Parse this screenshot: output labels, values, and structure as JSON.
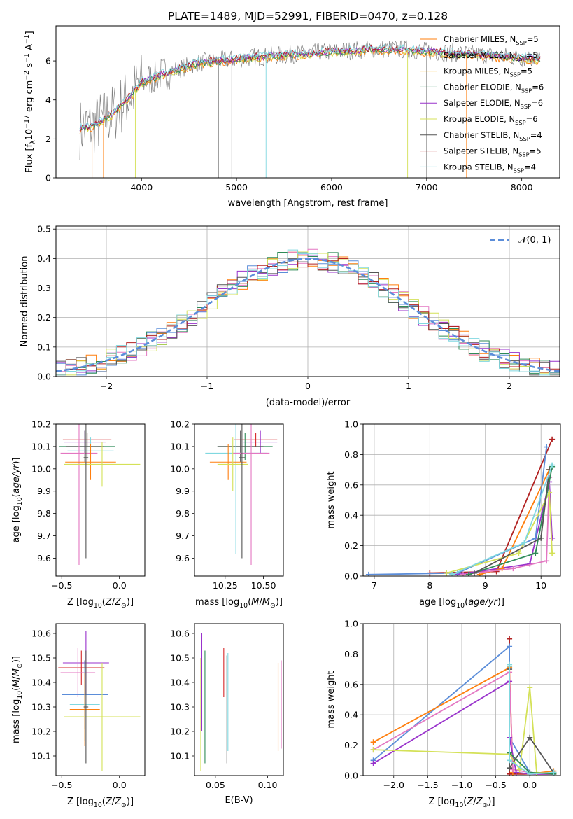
{
  "figure_title": "PLATE=1489, MJD=52991, FIBERID=0470, z=0.128",
  "model_colors": [
    "#ff7f0e",
    "#f0a030",
    "#ffb000",
    "#2e8b57",
    "#9932cc",
    "#d4e157",
    "#555555",
    "#b22222",
    "#80d8e0"
  ],
  "chart_data": [
    {
      "type": "line",
      "panel": "spectrum",
      "xlabel": "wavelength [Angstrom, rest frame]",
      "ylabel": "Flux [f_λ 10^-17 erg cm^-2 s^-1 A^-1]",
      "xlim": [
        3100,
        8400
      ],
      "ylim": [
        0,
        7.8
      ],
      "xticks": [
        4000,
        5000,
        6000,
        7000,
        8000
      ],
      "yticks": [
        0,
        2,
        4,
        6
      ],
      "legend_position": "upper right",
      "continuum": {
        "x": [
          3350,
          3500,
          3700,
          3900,
          4000,
          4200,
          4400,
          4600,
          4800,
          5000,
          5200,
          5500,
          5800,
          6100,
          6400,
          6700,
          7000,
          7300,
          7600,
          7900,
          8200
        ],
        "y": [
          2.5,
          2.7,
          3.3,
          4.3,
          4.9,
          5.3,
          5.6,
          5.9,
          6.0,
          6.1,
          6.2,
          6.3,
          6.4,
          6.5,
          6.6,
          6.6,
          6.5,
          6.4,
          6.3,
          6.2,
          6.1
        ]
      },
      "series": [
        {
          "name": "Chabrier MILES, N_SSP=5",
          "color": "#ff7f0e"
        },
        {
          "name": "Salpeter MILES, N_SSP=5",
          "color": "#ff7f0e"
        },
        {
          "name": "Kroupa MILES, N_SSP=5",
          "color": "#ffb000"
        },
        {
          "name": "Chabrier ELODIE, N_SSP=6",
          "color": "#2e8b57"
        },
        {
          "name": "Salpeter ELODIE, N_SSP=6",
          "color": "#9932cc"
        },
        {
          "name": "Kroupa ELODIE, N_SSP=6",
          "color": "#d4e157"
        },
        {
          "name": "Chabrier STELIB, N_SSP=4",
          "color": "#555555"
        },
        {
          "name": "Salpeter STELIB, N_SSP=5",
          "color": "#b22222"
        },
        {
          "name": "Kroupa STELIB, N_SSP=4",
          "color": "#80d8e0"
        }
      ]
    },
    {
      "type": "line",
      "panel": "residuals",
      "xlabel": "(data-model)/error",
      "ylabel": "Normed distribution",
      "xlim": [
        -2.5,
        2.5
      ],
      "ylim": [
        0,
        0.51
      ],
      "xticks": [
        -2,
        -1,
        0,
        1,
        2
      ],
      "yticks": [
        0.0,
        0.1,
        0.2,
        0.3,
        0.4,
        0.5
      ],
      "grid": true,
      "legend_position": "upper right",
      "reference": {
        "name": "N(0, 1)",
        "mean": 0,
        "sigma": 1,
        "color": "#5b8dd9"
      },
      "bin_width": 0.1,
      "histogram_colors": [
        "#ff7f0e",
        "#e377c2",
        "#5b8dd9",
        "#2e8b57",
        "#9932cc",
        "#d4e157",
        "#555555",
        "#b22222",
        "#80d8e0"
      ]
    },
    {
      "type": "scatter",
      "panel": "age_vs_Z",
      "xlabel": "Z [log10(Z/Z⊙)]",
      "ylabel": "age  [log10(age/yr)]",
      "xlim": [
        -0.55,
        0.22
      ],
      "ylim": [
        9.52,
        10.2
      ],
      "xticks": [
        -0.5,
        0.0
      ],
      "yticks": [
        9.6,
        9.7,
        9.8,
        9.9,
        10.0,
        10.1,
        10.2
      ],
      "points": [
        {
          "x": -0.28,
          "y": 10.13,
          "xerr": 0.21,
          "yerr": 0.03,
          "color": "#d62728"
        },
        {
          "x": -0.3,
          "y": 10.12,
          "xerr": 0.18,
          "yerr": 0.05,
          "color": "#9932cc"
        },
        {
          "x": -0.28,
          "y": 10.1,
          "xerr": 0.24,
          "yerr": 0.06,
          "color": "#2e8b57"
        },
        {
          "x": -0.3,
          "y": 10.1,
          "xerr": 0.16,
          "yerr": 0.07,
          "color": "#555555"
        },
        {
          "x": -0.25,
          "y": 10.08,
          "xerr": 0.2,
          "yerr": 0.06,
          "color": "#80d8e0"
        },
        {
          "x": -0.35,
          "y": 10.07,
          "xerr": 0.16,
          "yerr": 0.5,
          "color": "#e377c2"
        },
        {
          "x": -0.25,
          "y": 10.03,
          "xerr": 0.22,
          "yerr": 0.08,
          "color": "#ff7f0e"
        },
        {
          "x": -0.15,
          "y": 10.02,
          "xerr": 0.33,
          "yerr": 0.1,
          "color": "#d4e157"
        },
        {
          "x": -0.29,
          "y": 10.05,
          "xerr": 0.02,
          "yerr": 0.45,
          "color": "#555555"
        }
      ]
    },
    {
      "type": "scatter",
      "panel": "age_vs_mass",
      "xlabel": "mass [log10(M/M⊙)]",
      "ylabel": "",
      "xlim": [
        10.05,
        10.63
      ],
      "ylim": [
        9.52,
        10.2
      ],
      "xticks": [
        10.25,
        10.5
      ],
      "yticks": [
        9.6,
        9.7,
        9.8,
        9.9,
        10.0,
        10.1,
        10.2
      ],
      "points": [
        {
          "x": 10.45,
          "y": 10.13,
          "xerr": 0.14,
          "yerr": 0.03,
          "color": "#d62728"
        },
        {
          "x": 10.48,
          "y": 10.12,
          "xerr": 0.11,
          "yerr": 0.05,
          "color": "#9932cc"
        },
        {
          "x": 10.38,
          "y": 10.1,
          "xerr": 0.18,
          "yerr": 0.06,
          "color": "#2e8b57"
        },
        {
          "x": 10.35,
          "y": 10.1,
          "xerr": 0.15,
          "yerr": 0.07,
          "color": "#555555"
        },
        {
          "x": 10.32,
          "y": 10.07,
          "xerr": 0.2,
          "yerr": 0.45,
          "color": "#80d8e0"
        },
        {
          "x": 10.42,
          "y": 10.07,
          "xerr": 0.12,
          "yerr": 0.5,
          "color": "#e377c2"
        },
        {
          "x": 10.27,
          "y": 10.03,
          "xerr": 0.12,
          "yerr": 0.08,
          "color": "#ff7f0e"
        },
        {
          "x": 10.3,
          "y": 10.02,
          "xerr": 0.1,
          "yerr": 0.12,
          "color": "#d4e157"
        },
        {
          "x": 10.36,
          "y": 10.05,
          "xerr": 0.02,
          "yerr": 0.45,
          "color": "#555555"
        }
      ]
    },
    {
      "type": "line",
      "panel": "mass_weight_vs_age",
      "xlabel": "age  [log10(age/yr)]",
      "ylabel": "mass weight",
      "xlim": [
        6.8,
        10.35
      ],
      "ylim": [
        0,
        1.0
      ],
      "xticks": [
        7,
        8,
        9,
        10
      ],
      "yticks": [
        0.0,
        0.2,
        0.4,
        0.6,
        0.8,
        1.0
      ],
      "grid": true,
      "series": [
        {
          "color": "#b22222",
          "x": [
            8.0,
            9.2,
            10.2
          ],
          "y": [
            0.02,
            0.03,
            0.9
          ]
        },
        {
          "color": "#9932cc",
          "x": [
            8.5,
            9.8,
            10.15,
            10.2
          ],
          "y": [
            0.01,
            0.08,
            0.62,
            0.25
          ]
        },
        {
          "color": "#ff7f0e",
          "x": [
            8.9,
            9.3,
            10.15
          ],
          "y": [
            0.01,
            0.05,
            0.7
          ]
        },
        {
          "color": "#5b8dd9",
          "x": [
            6.9,
            8.5,
            9.9,
            10.1
          ],
          "y": [
            0.01,
            0.02,
            0.25,
            0.85
          ]
        },
        {
          "color": "#e377c2",
          "x": [
            8.6,
            9.5,
            10.1,
            10.15
          ],
          "y": [
            0.01,
            0.05,
            0.1,
            0.65
          ]
        },
        {
          "color": "#d4e157",
          "x": [
            8.3,
            9.6,
            10.15,
            10.2
          ],
          "y": [
            0.02,
            0.15,
            0.55,
            0.15
          ]
        },
        {
          "color": "#2e8b57",
          "x": [
            8.7,
            9.9,
            10.2
          ],
          "y": [
            0.01,
            0.15,
            0.72
          ]
        },
        {
          "color": "#555555",
          "x": [
            8.8,
            10.0,
            10.15
          ],
          "y": [
            0.02,
            0.25,
            0.7
          ]
        },
        {
          "color": "#80d8e0",
          "x": [
            8.4,
            9.7,
            10.2
          ],
          "y": [
            0.01,
            0.22,
            0.73
          ]
        }
      ]
    },
    {
      "type": "scatter",
      "panel": "mass_vs_Z",
      "xlabel": "Z [log10(Z/Z⊙)]",
      "ylabel": "mass [log10(M/M⊙)]",
      "xlim": [
        -0.55,
        0.22
      ],
      "ylim": [
        10.02,
        10.64
      ],
      "xticks": [
        -0.5,
        0.0
      ],
      "yticks": [
        10.1,
        10.2,
        10.3,
        10.4,
        10.5,
        10.6
      ],
      "points": [
        {
          "x": -0.29,
          "y": 10.48,
          "xerr": 0.2,
          "yerr": 0.13,
          "color": "#9932cc"
        },
        {
          "x": -0.33,
          "y": 10.46,
          "xerr": 0.2,
          "yerr": 0.07,
          "color": "#d62728"
        },
        {
          "x": -0.36,
          "y": 10.44,
          "xerr": 0.15,
          "yerr": 0.1,
          "color": "#e377c2"
        },
        {
          "x": -0.3,
          "y": 10.39,
          "xerr": 0.2,
          "yerr": 0.1,
          "color": "#2e8b57"
        },
        {
          "x": -0.3,
          "y": 10.35,
          "xerr": 0.2,
          "yerr": 0.14,
          "color": "#555555"
        },
        {
          "x": -0.3,
          "y": 10.35,
          "xerr": 0.2,
          "yerr": 0.14,
          "color": "#5b8dd9"
        },
        {
          "x": -0.3,
          "y": 10.31,
          "xerr": 0.13,
          "yerr": 0.15,
          "color": "#80d8e0"
        },
        {
          "x": -0.3,
          "y": 10.29,
          "xerr": 0.13,
          "yerr": 0.15,
          "color": "#ff7f0e"
        },
        {
          "x": -0.15,
          "y": 10.26,
          "xerr": 0.33,
          "yerr": 0.22,
          "color": "#d4e157"
        },
        {
          "x": -0.29,
          "y": 10.3,
          "xerr": 0.02,
          "yerr": 0.23,
          "color": "#555555"
        }
      ]
    },
    {
      "type": "scatter",
      "panel": "mass_vs_EBV",
      "xlabel": "E(B-V)",
      "ylabel": "",
      "xlim": [
        0.03,
        0.115
      ],
      "ylim": [
        10.02,
        10.64
      ],
      "xticks": [
        0.05,
        0.1
      ],
      "yticks": [
        10.1,
        10.2,
        10.3,
        10.4,
        10.5,
        10.6
      ],
      "points": [
        {
          "x": 0.037,
          "y": 10.4,
          "xerr": 0.0,
          "yerr": 0.2,
          "color": "#9932cc"
        },
        {
          "x": 0.036,
          "y": 10.27,
          "xerr": 0.0,
          "yerr": 0.23,
          "color": "#d4e157"
        },
        {
          "x": 0.04,
          "y": 10.3,
          "xerr": 0.0,
          "yerr": 0.23,
          "color": "#2e8b57"
        },
        {
          "x": 0.058,
          "y": 10.44,
          "xerr": 0.0,
          "yerr": 0.1,
          "color": "#d62728"
        },
        {
          "x": 0.061,
          "y": 10.29,
          "xerr": 0.0,
          "yerr": 0.22,
          "color": "#555555"
        },
        {
          "x": 0.062,
          "y": 10.32,
          "xerr": 0.0,
          "yerr": 0.2,
          "color": "#80d8e0"
        },
        {
          "x": 0.11,
          "y": 10.3,
          "xerr": 0.0,
          "yerr": 0.18,
          "color": "#ff7f0e"
        },
        {
          "x": 0.113,
          "y": 10.31,
          "xerr": 0.0,
          "yerr": 0.18,
          "color": "#e377c2"
        }
      ]
    },
    {
      "type": "line",
      "panel": "mass_weight_vs_Z",
      "xlabel": "Z [log10(Z/Z⊙)]",
      "ylabel": "mass weight",
      "xlim": [
        -2.45,
        0.45
      ],
      "ylim": [
        0,
        1.0
      ],
      "xticks": [
        -2.0,
        -1.5,
        -1.0,
        -0.5,
        0.0
      ],
      "yticks": [
        0.0,
        0.2,
        0.4,
        0.6,
        0.8,
        1.0
      ],
      "grid": true,
      "series": [
        {
          "color": "#b22222",
          "x": [
            -0.3,
            -0.3,
            -0.3,
            0.0,
            0.35
          ],
          "y": [
            0.9,
            0.15,
            0.01,
            0.01,
            0.01
          ]
        },
        {
          "color": "#5b8dd9",
          "x": [
            -2.3,
            -0.3,
            -0.3,
            0.0,
            0.35
          ],
          "y": [
            0.1,
            0.85,
            0.25,
            0.02,
            0.01
          ]
        },
        {
          "color": "#ff7f0e",
          "x": [
            -2.3,
            -0.3,
            -0.25,
            0.0,
            0.35
          ],
          "y": [
            0.22,
            0.71,
            0.02,
            0.01,
            0.03
          ]
        },
        {
          "color": "#e377c2",
          "x": [
            -2.3,
            -0.3,
            -0.25,
            0.0,
            0.35
          ],
          "y": [
            0.17,
            0.68,
            0.04,
            0.02,
            0.01
          ]
        },
        {
          "color": "#9932cc",
          "x": [
            -2.3,
            -0.3,
            -0.3,
            -0.2,
            0.0,
            0.35
          ],
          "y": [
            0.08,
            0.62,
            0.25,
            0.02,
            0.01,
            0.01
          ]
        },
        {
          "color": "#d4e157",
          "x": [
            -2.3,
            -0.3,
            -0.15,
            0.0,
            0.1,
            0.35
          ],
          "y": [
            0.17,
            0.14,
            0.04,
            0.58,
            0.02,
            0.01
          ]
        },
        {
          "color": "#2e8b57",
          "x": [
            -0.3,
            -0.3,
            0.0,
            0.35
          ],
          "y": [
            0.72,
            0.15,
            0.02,
            0.01
          ]
        },
        {
          "color": "#555555",
          "x": [
            -0.3,
            -0.3,
            0.0,
            0.35
          ],
          "y": [
            0.7,
            0.05,
            0.25,
            0.02
          ]
        },
        {
          "color": "#80d8e0",
          "x": [
            -0.3,
            -0.3,
            0.0,
            0.35
          ],
          "y": [
            0.73,
            0.1,
            0.01,
            0.02
          ]
        }
      ]
    }
  ]
}
